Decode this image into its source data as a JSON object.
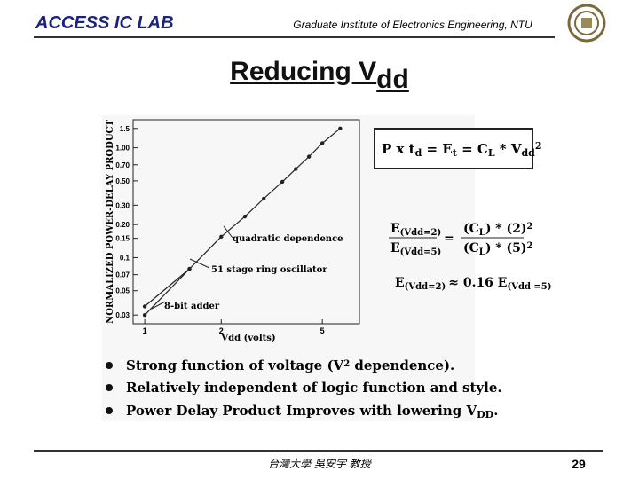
{
  "header": {
    "lab": "ACCESS IC LAB",
    "institute": "Graduate Institute of Electronics Engineering, NTU"
  },
  "title": [
    "Reducing V",
    "dd"
  ],
  "chart_data": {
    "type": "line",
    "y_label": "NORMALIZED POWER-DELAY PRODUCT",
    "x_label": "Vdd (volts)",
    "log_x": true,
    "log_y": true,
    "xlim": [
      0.9,
      7
    ],
    "ylim": [
      0.025,
      1.8
    ],
    "xticks": [
      1,
      2,
      5
    ],
    "yticks": [
      1.5,
      {
        "value": 1,
        "label": "1.00"
      },
      {
        "value": 0.7,
        "label": "0.70"
      },
      {
        "value": 0.5,
        "label": "0.50"
      },
      {
        "value": 0.3,
        "label": "0.30"
      },
      {
        "value": 0.2,
        "label": "0.20"
      },
      0.15,
      0.1,
      0.07,
      0.05,
      0.03
    ],
    "series": [
      {
        "color": "#222222",
        "x": [
          1,
          1.5,
          2,
          2.48,
          2.94,
          3.48,
          3.93,
          4.43,
          5,
          5.88
        ],
        "values": [
          0.036,
          0.079,
          0.155,
          0.237,
          0.344,
          0.49,
          0.64,
          0.83,
          1.1,
          1.5
        ]
      },
      {
        "color": "#222222",
        "x": [
          1,
          1.5
        ],
        "values": [
          0.03,
          0.079
        ]
      }
    ],
    "annotations": [
      "quadratic dependence",
      "51 stage ring oscillator",
      "8-bit adder"
    ]
  },
  "equations": {
    "energy": [
      "P x t",
      "d",
      " = E",
      "t",
      " = C",
      "L",
      " * V",
      "dd",
      "2"
    ],
    "ratio_left_num": [
      "E",
      "(Vdd=2)"
    ],
    "ratio_left_den": [
      "E",
      "(Vdd=5)"
    ],
    "equals": "=",
    "ratio_right_num": [
      "(C",
      "L",
      ") * (2)",
      "2"
    ],
    "ratio_right_den": [
      "(C",
      "L",
      ") * (5)",
      "2"
    ],
    "result": [
      "E",
      "(Vdd=2)",
      "≈ 0.16 E",
      "(Vdd =5)"
    ]
  },
  "bullets": [
    [
      "Strong function of voltage (V",
      "2",
      " dependence)."
    ],
    [
      "Relatively independent of logic function and style."
    ],
    [
      "Power Delay Product Improves with lowering V",
      "DD",
      "."
    ]
  ],
  "footer": {
    "author": "台灣大學 吳安宇 教授",
    "page": "29"
  }
}
